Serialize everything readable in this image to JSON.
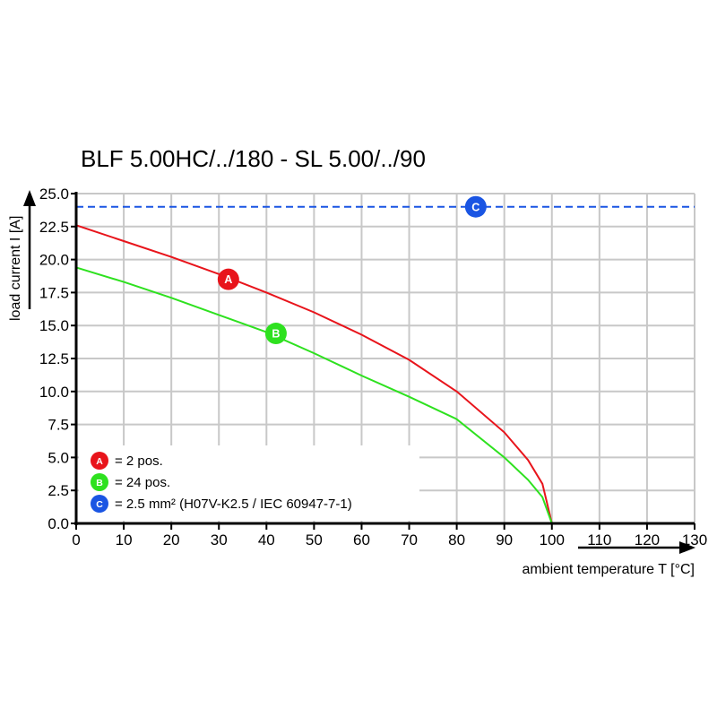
{
  "chart_data": {
    "type": "line",
    "title": "BLF 5.00HC/../180 - SL 5.00/../90",
    "xlabel": "ambient temperature T [°C]",
    "ylabel": "load current I [A]",
    "xlim": [
      0,
      130
    ],
    "ylim": [
      0,
      25
    ],
    "x_ticks": [
      "0",
      "10",
      "20",
      "30",
      "40",
      "50",
      "60",
      "70",
      "80",
      "90",
      "100",
      "110",
      "120",
      "130"
    ],
    "y_ticks": [
      "0.0",
      "2.5",
      "5.0",
      "7.5",
      "10.0",
      "12.5",
      "15.0",
      "17.5",
      "20.0",
      "22.5",
      "25.0"
    ],
    "grid": true,
    "series": [
      {
        "marker": "A",
        "color": "#e8141b",
        "x": [
          0,
          10,
          20,
          30,
          40,
          50,
          60,
          70,
          80,
          90,
          95,
          98,
          100
        ],
        "y": [
          22.6,
          21.4,
          20.2,
          18.9,
          17.5,
          16.0,
          14.3,
          12.4,
          10.0,
          6.9,
          4.8,
          3.0,
          0
        ],
        "label_at": [
          32,
          18.5
        ]
      },
      {
        "marker": "B",
        "color": "#2ee11f",
        "x": [
          0,
          10,
          20,
          30,
          40,
          50,
          60,
          70,
          80,
          90,
          95,
          98,
          100
        ],
        "y": [
          19.4,
          18.3,
          17.1,
          15.8,
          14.5,
          12.9,
          11.2,
          9.6,
          7.9,
          5.0,
          3.3,
          2.0,
          0
        ],
        "label_at": [
          42,
          14.4
        ]
      },
      {
        "marker": "C",
        "color": "#1a55e3",
        "dashed": true,
        "x": [
          0,
          130
        ],
        "y": [
          24,
          24
        ],
        "label_at": [
          84,
          24
        ]
      }
    ],
    "legend": {
      "placement": "bottom-left",
      "entries": [
        {
          "marker": "A",
          "text": "= 2 pos."
        },
        {
          "marker": "B",
          "text": "= 24 pos."
        },
        {
          "marker": "C",
          "text": "= 2.5 mm² (H07V-K2.5 / IEC 60947-7-1)"
        }
      ]
    }
  }
}
